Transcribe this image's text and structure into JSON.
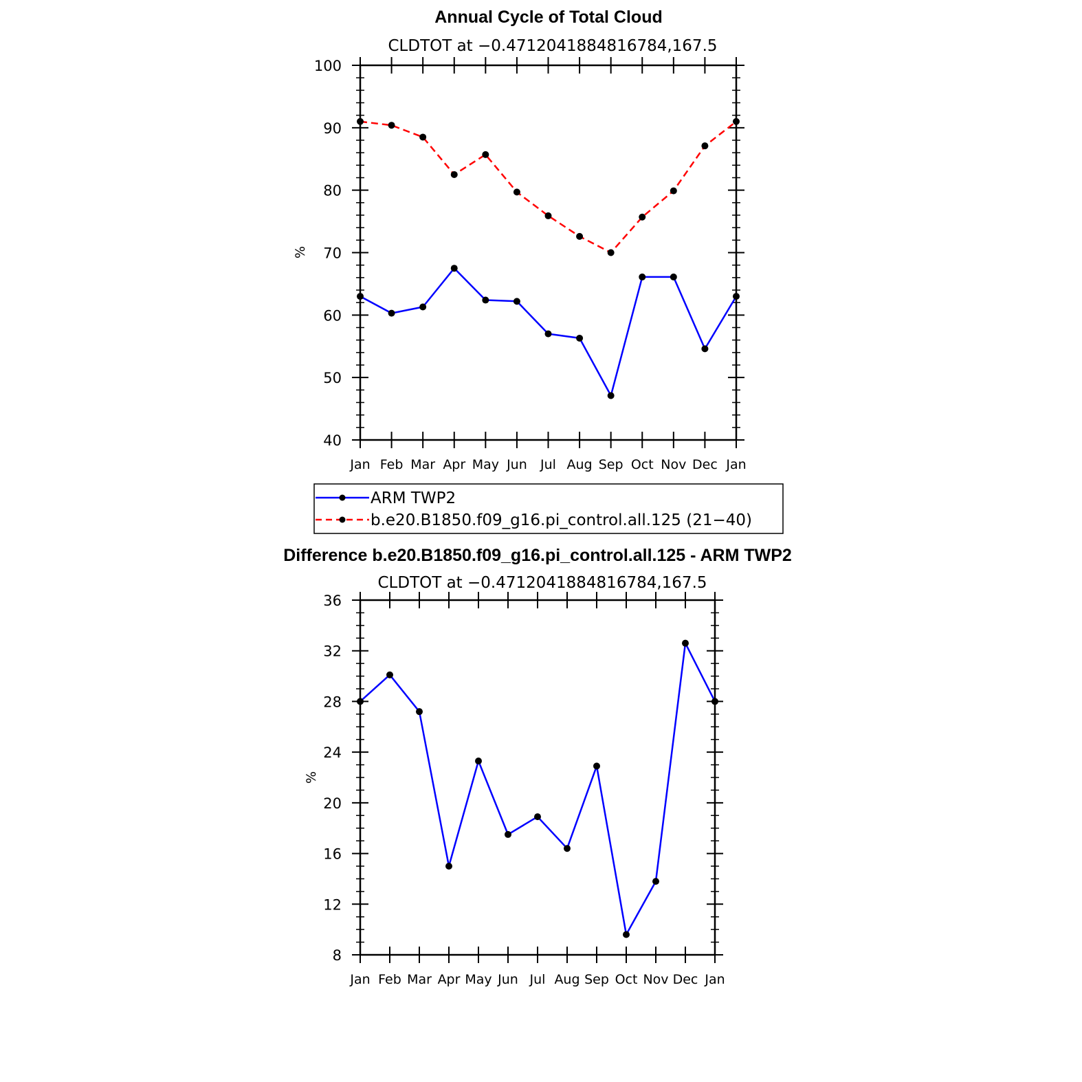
{
  "colors": {
    "obs_series": "#0000ff",
    "model_series": "#ff0000",
    "marker": "#000000",
    "axis": "#000000"
  },
  "chart_data": [
    {
      "type": "line",
      "title": "Annual Cycle of Total Cloud",
      "subtitle": "CLDTOT at −0.4712041884816784,167.5",
      "ylabel": "%",
      "xlabel": "",
      "categories": [
        "Jan",
        "Feb",
        "Mar",
        "Apr",
        "May",
        "Jun",
        "Jul",
        "Aug",
        "Sep",
        "Oct",
        "Nov",
        "Dec",
        "Jan"
      ],
      "ylim": [
        40,
        100
      ],
      "yticks": [
        40,
        50,
        60,
        70,
        80,
        90,
        100
      ],
      "grid": false,
      "legend_placement": "bottom",
      "series": [
        {
          "name": "ARM TWP2",
          "style": "solid",
          "values": [
            63.0,
            60.3,
            61.3,
            67.5,
            62.4,
            62.2,
            57.0,
            56.3,
            47.1,
            66.1,
            66.1,
            54.6,
            63.0
          ]
        },
        {
          "name": "b.e20.B1850.f09_g16.pi_control.all.125 (21−40)",
          "style": "dashed",
          "values": [
            91.0,
            90.4,
            88.5,
            82.5,
            85.7,
            79.7,
            75.9,
            72.6,
            70.0,
            75.7,
            79.9,
            87.1,
            91.0
          ]
        }
      ]
    },
    {
      "type": "line",
      "title": "Difference b.e20.B1850.f09_g16.pi_control.all.125 - ARM TWP2",
      "subtitle": "CLDTOT at −0.4712041884816784,167.5",
      "ylabel": "%",
      "xlabel": "",
      "categories": [
        "Jan",
        "Feb",
        "Mar",
        "Apr",
        "May",
        "Jun",
        "Jul",
        "Aug",
        "Sep",
        "Oct",
        "Nov",
        "Dec",
        "Jan"
      ],
      "ylim": [
        8,
        36
      ],
      "yticks": [
        8,
        12,
        16,
        20,
        24,
        28,
        32,
        36
      ],
      "grid": false,
      "series": [
        {
          "style": "solid",
          "values": [
            28.0,
            30.1,
            27.2,
            15.0,
            23.3,
            17.5,
            18.9,
            16.4,
            22.9,
            9.6,
            13.8,
            32.6,
            28.0
          ]
        }
      ]
    }
  ]
}
